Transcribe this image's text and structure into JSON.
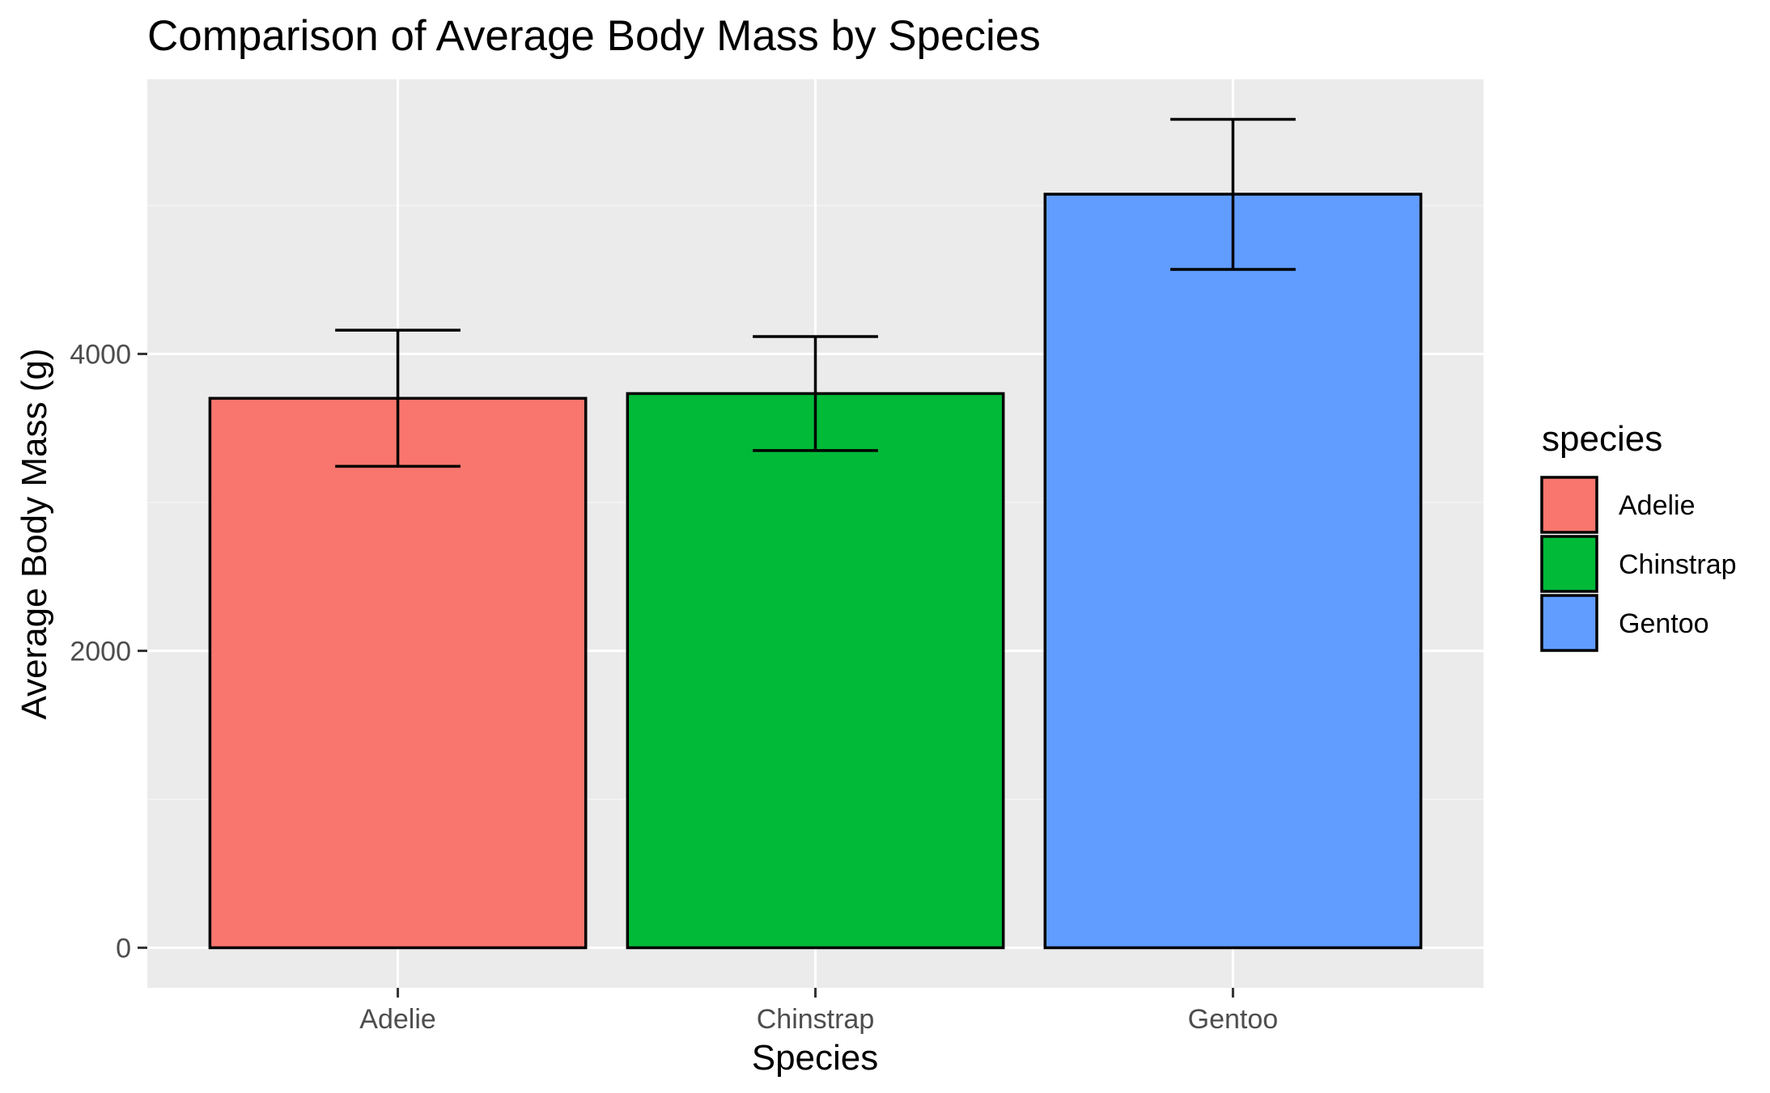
{
  "chart_data": {
    "type": "bar",
    "title": "Comparison of Average Body Mass by Species",
    "xlabel": "Species",
    "ylabel": "Average Body Mass (g)",
    "categories": [
      "Adelie",
      "Chinstrap",
      "Gentoo"
    ],
    "values": [
      3701,
      3733,
      5076
    ],
    "error_bars": [
      {
        "low": 3243,
        "high": 4160
      },
      {
        "low": 3349,
        "high": 4117
      },
      {
        "low": 4569,
        "high": 5580
      }
    ],
    "ylim": [
      -270,
      5850
    ],
    "y_ticks": [
      0,
      2000,
      4000
    ],
    "y_tick_labels": [
      "0",
      "2000",
      "4000"
    ],
    "y_minor_gridlines": [
      1000,
      3000,
      5000
    ],
    "grid": true,
    "legend": {
      "title": "species",
      "placement": "right",
      "entries": [
        "Adelie",
        "Chinstrap",
        "Gentoo"
      ]
    },
    "colors": {
      "Adelie": "#F8766D",
      "Chinstrap": "#00BA38",
      "Gentoo": "#619CFF",
      "panel_background": "#EBEBEB",
      "grid_major": "#FFFFFF",
      "grid_minor": "#F5F5F5",
      "bar_outline": "#000000",
      "error_bar": "#000000",
      "tick_label": "#4D4D4D"
    }
  }
}
